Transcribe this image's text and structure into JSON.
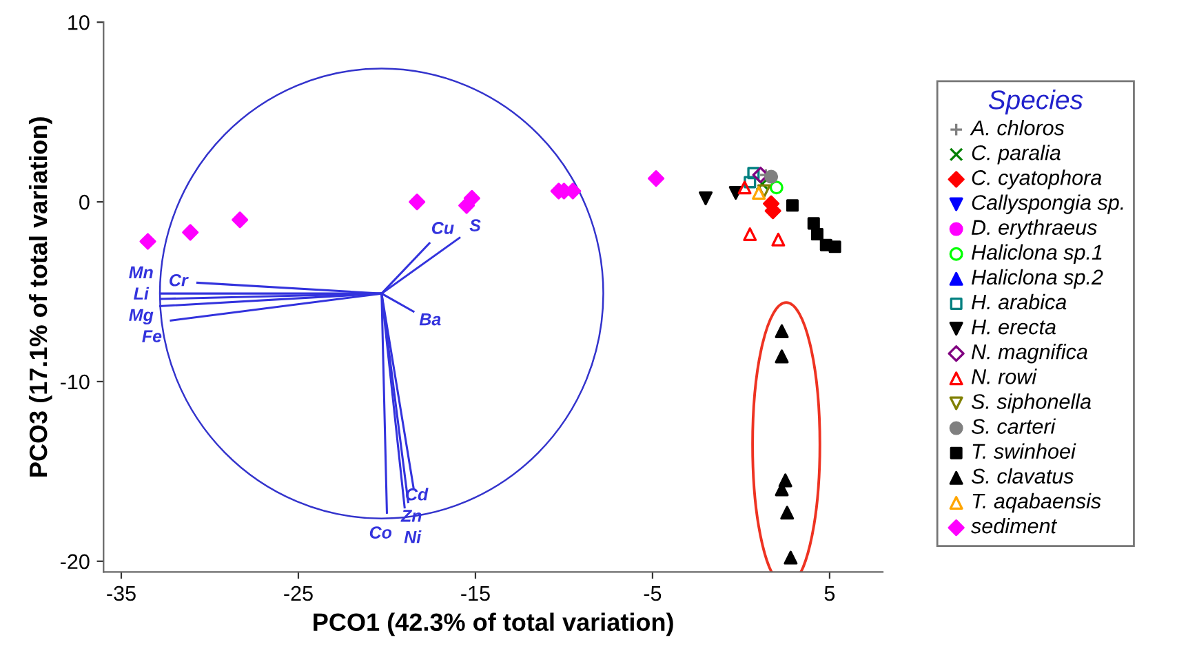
{
  "chart_data": {
    "type": "scatter",
    "xlabel": "PCO1 (42.3% of total variation)",
    "ylabel": "PCO3 (17.1% of total variation)",
    "legend_title": "Species",
    "legend": "right",
    "grid": false,
    "xlim": [
      -36,
      8
    ],
    "ylim": [
      -20.6,
      10
    ],
    "xticks": [
      -35,
      -25,
      -15,
      -5,
      5
    ],
    "yticks": [
      -20,
      -10,
      0,
      10
    ],
    "series": [
      {
        "name": "A. chloros",
        "color": "#808080",
        "marker": "plus",
        "x": [
          1.4
        ],
        "values": [
          1.5
        ]
      },
      {
        "name": "C. paralia",
        "color": "#008000",
        "marker": "cross",
        "x": [
          1.2
        ],
        "values": [
          1.0
        ]
      },
      {
        "name": "C. cyatophora",
        "color": "#ff0000",
        "marker": "diamond",
        "x": [
          1.7,
          1.8
        ],
        "values": [
          -0.1,
          -0.5
        ]
      },
      {
        "name": "Callyspongia sp.",
        "color": "#0000ff",
        "marker": "triangle-down",
        "x": [
          null
        ],
        "values": [
          null
        ]
      },
      {
        "name": "D. erythraeus",
        "color": "#ff00ff",
        "marker": "circle",
        "x": [
          null
        ],
        "values": [
          null
        ]
      },
      {
        "name": "Haliclona sp.1",
        "color": "#00ff00",
        "marker": "circle-open",
        "x": [
          2.0
        ],
        "values": [
          0.8
        ]
      },
      {
        "name": "Haliclona sp.2",
        "color": "#0000ff",
        "marker": "triangle",
        "x": [
          null
        ],
        "values": [
          null
        ]
      },
      {
        "name": "H. arabica",
        "color": "#008080",
        "marker": "square-open",
        "x": [
          0.7,
          0.5
        ],
        "values": [
          1.6,
          1.1
        ]
      },
      {
        "name": "H. erecta",
        "color": "#000000",
        "marker": "triangle-down",
        "x": [
          -2.0,
          -0.3
        ],
        "values": [
          0.2,
          0.5
        ]
      },
      {
        "name": "N. magnifica",
        "color": "#800080",
        "marker": "diamond-open",
        "x": [
          1.1
        ],
        "values": [
          1.5
        ]
      },
      {
        "name": "N. rowi",
        "color": "#ff0000",
        "marker": "triangle-open",
        "x": [
          0.5,
          2.1,
          0.2
        ],
        "values": [
          -1.8,
          -2.1,
          0.8
        ]
      },
      {
        "name": "S. siphonella",
        "color": "#808000",
        "marker": "triangle-down-open",
        "x": [
          1.3
        ],
        "values": [
          0.6
        ]
      },
      {
        "name": "S. carteri",
        "color": "#808080",
        "marker": "circle",
        "x": [
          1.7
        ],
        "values": [
          1.4
        ]
      },
      {
        "name": "T. swinhoei",
        "color": "#000000",
        "marker": "square",
        "x": [
          2.9,
          4.1,
          4.3,
          4.8,
          5.3
        ],
        "values": [
          -0.2,
          -1.2,
          -1.8,
          -2.4,
          -2.5
        ]
      },
      {
        "name": "S. clavatus",
        "color": "#000000",
        "marker": "triangle",
        "x": [
          2.3,
          2.3,
          2.5,
          2.3,
          2.6,
          2.8
        ],
        "values": [
          -7.2,
          -8.6,
          -15.5,
          -16.0,
          -17.3,
          -19.8
        ]
      },
      {
        "name": "T. aqabaensis",
        "color": "#ffa500",
        "marker": "triangle-open",
        "x": [
          1.0
        ],
        "values": [
          0.5
        ]
      },
      {
        "name": "sediment",
        "color": "#ff00ff",
        "marker": "diamond",
        "x": [
          -33.5,
          -31.1,
          -28.3,
          -18.3,
          -15.5,
          -15.2,
          -10.3,
          -10.0,
          -9.5,
          -4.8
        ],
        "values": [
          -2.2,
          -1.7,
          -1.0,
          0.0,
          -0.2,
          0.2,
          0.6,
          0.6,
          0.6,
          1.3
        ]
      },
      {
        "name": "Cr",
        "type": "line",
        "color": "#3333dd",
        "x": [
          -20.3,
          -30.7
        ],
        "values": [
          -5.1,
          -4.5
        ]
      },
      {
        "name": "Mn",
        "type": "line",
        "color": "#3333dd",
        "x": [
          -20.3,
          -32.8
        ],
        "values": [
          -5.1,
          -5.1
        ]
      },
      {
        "name": "Li",
        "type": "line",
        "color": "#3333dd",
        "x": [
          -20.3,
          -32.8
        ],
        "values": [
          -5.1,
          -5.4
        ]
      },
      {
        "name": "Mg",
        "type": "line",
        "color": "#3333dd",
        "x": [
          -20.3,
          -32.8
        ],
        "values": [
          -5.1,
          -5.8
        ]
      },
      {
        "name": "Fe",
        "type": "line",
        "color": "#3333dd",
        "x": [
          -20.3,
          -32.2
        ],
        "values": [
          -5.1,
          -6.6
        ]
      },
      {
        "name": "Cu",
        "type": "line",
        "color": "#3333dd",
        "x": [
          -20.3,
          -17.6
        ],
        "values": [
          -5.1,
          -2.3
        ]
      },
      {
        "name": "S",
        "type": "line",
        "color": "#3333dd",
        "x": [
          -20.3,
          -15.9
        ],
        "values": [
          -5.1,
          -2.0
        ]
      },
      {
        "name": "Ba",
        "type": "line",
        "color": "#3333dd",
        "x": [
          -20.3,
          -18.5
        ],
        "values": [
          -5.1,
          -6.1
        ]
      },
      {
        "name": "Cd",
        "type": "line",
        "color": "#3333dd",
        "x": [
          -20.3,
          -18.5
        ],
        "values": [
          -5.1,
          -15.9
        ]
      },
      {
        "name": "Zn",
        "type": "line",
        "color": "#3333dd",
        "x": [
          -20.3,
          -18.8
        ],
        "values": [
          -5.1,
          -16.7
        ]
      },
      {
        "name": "Ni",
        "type": "line",
        "color": "#3333dd",
        "x": [
          -20.3,
          -19.0
        ],
        "values": [
          -5.1,
          -17.0
        ]
      },
      {
        "name": "Co",
        "type": "line",
        "color": "#3333dd",
        "x": [
          -20.3,
          -20.0
        ],
        "values": [
          -5.1,
          -17.3
        ]
      }
    ]
  }
}
